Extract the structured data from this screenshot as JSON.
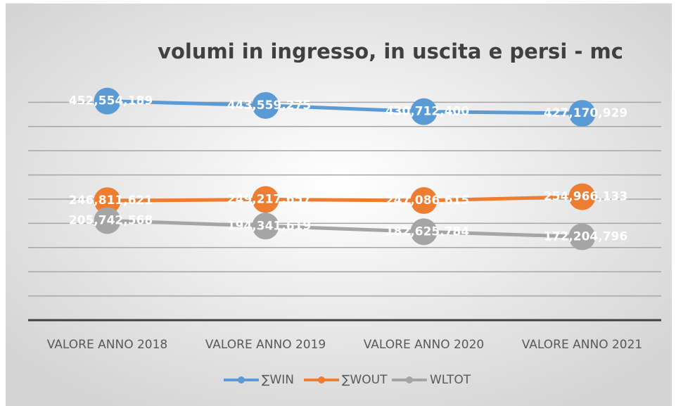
{
  "chart_data": {
    "type": "line",
    "title": "volumi in ingresso, in uscita e persi - mc",
    "categories": [
      "VALORE ANNO 2018",
      "VALORE ANNO 2019",
      "VALORE ANNO 2020",
      "VALORE ANNO 2021"
    ],
    "series": [
      {
        "name": "∑WIN",
        "color": "#5b9bd5",
        "values": [
          452554189,
          443559275,
          430712400,
          427170929
        ],
        "value_labels": [
          "452,554,189",
          "443,559,275",
          "430,712,400",
          "427,170,929"
        ]
      },
      {
        "name": "∑WOUT",
        "color": "#ed7d31",
        "values": [
          246811621,
          249217657,
          247086615,
          254966133
        ],
        "value_labels": [
          "246,811,621",
          "249,217,657",
          "247,086,615",
          "254,966,133"
        ]
      },
      {
        "name": "WLTOT",
        "color": "#a5a5a5",
        "values": [
          205742568,
          194341619,
          182625784,
          172204796
        ],
        "value_labels": [
          "205,742,568",
          "194,341,619",
          "182,625,784",
          "172,204,796"
        ]
      }
    ],
    "ylim": [
      0,
      500000000
    ],
    "yticks": [
      0,
      50000000,
      100000000,
      150000000,
      200000000,
      250000000,
      300000000,
      350000000,
      400000000,
      450000000
    ],
    "grid": true,
    "legend": "bottom"
  }
}
